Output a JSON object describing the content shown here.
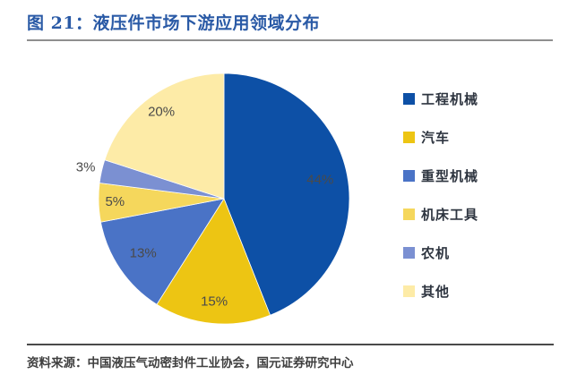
{
  "page": {
    "title": "图 21：液压件市场下游应用领域分布",
    "source_note": "资料来源：中国液压气动密封件工业协会，国元证券研究中心"
  },
  "theme": {
    "title_color": "#2a5aa6",
    "data_label_color": "#4a4a4a",
    "top_rule_color": "#8f8f8f",
    "bottom_rule_color": "#4a4a4a",
    "background": "#ffffff"
  },
  "chart_data": {
    "type": "pie",
    "title": "液压件市场下游应用领域分布",
    "unit": "%",
    "start_angle_deg": 0,
    "direction": "clockwise",
    "legend_position": "right",
    "slices": [
      {
        "label": "工程机械",
        "value": 44,
        "data_label": "44%",
        "color": "#0D50A6"
      },
      {
        "label": "汽车",
        "value": 15,
        "data_label": "15%",
        "color": "#EDC513"
      },
      {
        "label": "重型机械",
        "value": 13,
        "data_label": "13%",
        "color": "#4A73C6"
      },
      {
        "label": "机床工具",
        "value": 5,
        "data_label": "5%",
        "color": "#F5D75C"
      },
      {
        "label": "农机",
        "value": 3,
        "data_label": "3%",
        "color": "#7B90D2"
      },
      {
        "label": "其他",
        "value": 20,
        "data_label": "20%",
        "color": "#FDEBA7"
      }
    ]
  }
}
